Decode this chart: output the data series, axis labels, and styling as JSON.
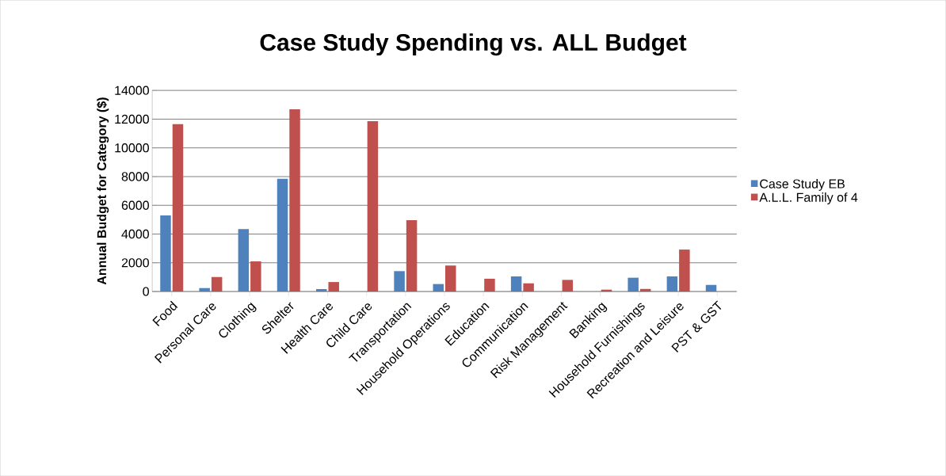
{
  "chart_data": {
    "type": "bar",
    "title": "Case Study Spending vs. ALL Budget",
    "ylabel": "Annual Budget for Category ($)",
    "categories": [
      "Food",
      "Personal Care",
      "Clothing",
      "Shelter",
      "Health Care",
      "Child Care",
      "Transportation",
      "Household Operations",
      "Education",
      "Communication",
      "Risk Management",
      "Banking",
      "Household Furnishings",
      "Recreation and Leisure",
      "PST & GST"
    ],
    "series": [
      {
        "name": "Case Study EB",
        "color": "#4f81bd",
        "values": [
          5300,
          240,
          4340,
          7840,
          170,
          0,
          1420,
          520,
          0,
          1050,
          0,
          0,
          960,
          1050,
          460
        ]
      },
      {
        "name": "A.L.L. Family of 4",
        "color": "#c0504d",
        "values": [
          11650,
          1010,
          2100,
          12680,
          660,
          11860,
          4960,
          1810,
          890,
          570,
          810,
          130,
          180,
          2920,
          0
        ]
      }
    ],
    "ylim": [
      0,
      14000
    ],
    "yticks": [
      0,
      2000,
      4000,
      6000,
      8000,
      10000,
      12000,
      14000
    ],
    "grid": "y",
    "legend": "right"
  }
}
